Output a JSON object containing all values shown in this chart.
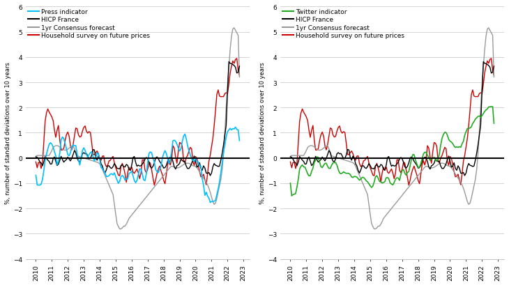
{
  "ylabel": "%, number of standard deviations over 10 years",
  "ylim": [
    -4,
    6
  ],
  "yticks": [
    -4,
    -3,
    -2,
    -1,
    0,
    1,
    2,
    3,
    4,
    5,
    6
  ],
  "colors": {
    "press": "#00BFFF",
    "twitter": "#22AA22",
    "hicp": "#000000",
    "consensus": "#999999",
    "household": "#CC0000"
  },
  "legend_left": [
    "Press indicator",
    "HICP France",
    "1yr Consensus forecast",
    "Household survey on future prices"
  ],
  "legend_right": [
    "Twitter indicator",
    "HICP France",
    "1yr Consensus forecast",
    "Household survey on future prices"
  ],
  "background": "#ffffff",
  "grid_color": "#cccccc",
  "figsize": [
    7.3,
    4.1
  ],
  "dpi": 100
}
